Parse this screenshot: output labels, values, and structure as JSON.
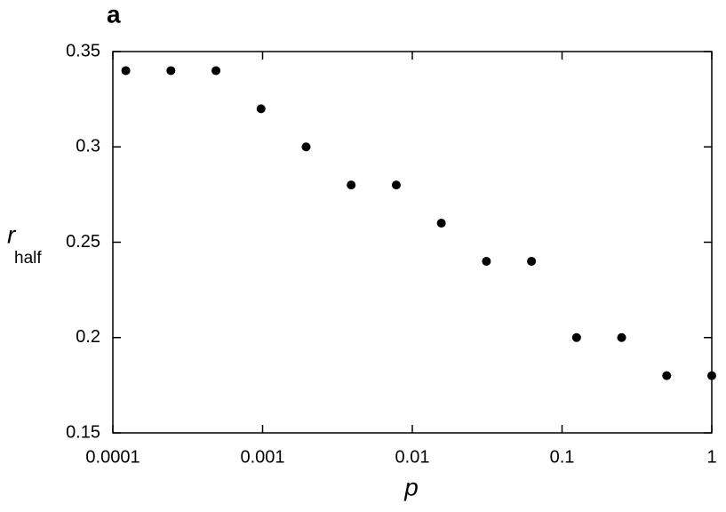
{
  "chart_data": {
    "type": "scatter",
    "panel_label": "a",
    "xlabel": "p",
    "ylabel": "r",
    "ylabel_subscript": "half",
    "x": [
      0.0001220703125,
      0.000244140625,
      0.00048828125,
      0.0009765625,
      0.001953125,
      0.00390625,
      0.0078125,
      0.015625,
      0.03125,
      0.0625,
      0.125,
      0.25,
      0.5,
      1
    ],
    "y": [
      0.34,
      0.34,
      0.34,
      0.32,
      0.3,
      0.28,
      0.28,
      0.26,
      0.24,
      0.24,
      0.2,
      0.2,
      0.18,
      0.18
    ],
    "color": "#000000",
    "xscale": "log",
    "xlim": [
      0.0001,
      1
    ],
    "xticks": [
      0.0001,
      0.001,
      0.01,
      0.1,
      1
    ],
    "ylim": [
      0.15,
      0.35
    ],
    "yticks": [
      0.15,
      0.2,
      0.25,
      0.3,
      0.35
    ]
  }
}
